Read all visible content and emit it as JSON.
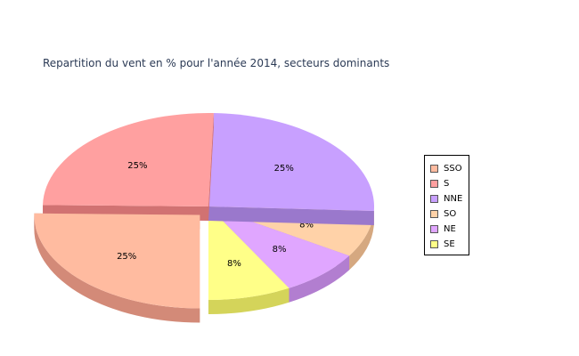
{
  "chart_data": {
    "type": "pie",
    "style": "3d-exploded",
    "title": "Repartition du vent en % pour l'année 2014, secteurs dominants",
    "slices": [
      {
        "name": "SSO",
        "value": 25,
        "label": "25%",
        "color": "#ffbba0",
        "side_color": "#d38a78",
        "exploded": true
      },
      {
        "name": "S",
        "value": 25,
        "label": "25%",
        "color": "#ffa0a0",
        "side_color": "#d17272",
        "exploded": false
      },
      {
        "name": "NNE",
        "value": 25,
        "label": "25%",
        "color": "#c8a0ff",
        "side_color": "#9a78cc",
        "exploded": false
      },
      {
        "name": "SO",
        "value": 8,
        "label": "8%",
        "color": "#ffd2a8",
        "side_color": "#d5a880",
        "exploded": false
      },
      {
        "name": "NE",
        "value": 8,
        "label": "8%",
        "color": "#e0a6ff",
        "side_color": "#b27ed0",
        "exploded": false
      },
      {
        "name": "SE",
        "value": 8,
        "label": "8%",
        "color": "#ffff88",
        "side_color": "#d4d45a",
        "exploded": false
      }
    ],
    "legend_position": "right"
  }
}
